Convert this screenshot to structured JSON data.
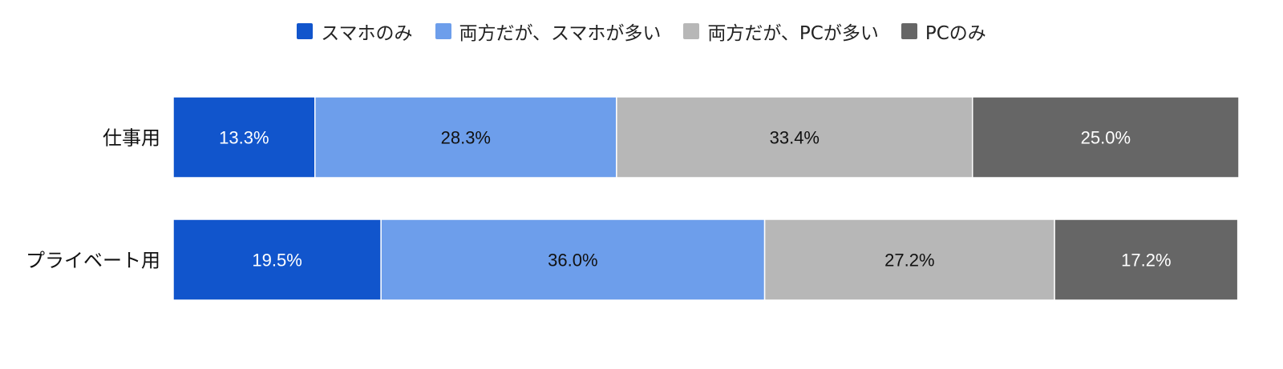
{
  "chart_data": {
    "type": "bar",
    "orientation": "horizontal",
    "stacked": true,
    "categories": [
      "仕事用",
      "プライベート用"
    ],
    "series": [
      {
        "name": "スマホのみ",
        "color": "#1155cc",
        "values": [
          13.3,
          19.5
        ],
        "labels": [
          "13.3%",
          "19.5%"
        ],
        "label_color": "#ffffff"
      },
      {
        "name": "両方だが、スマホが多い",
        "color": "#6d9eeb",
        "values": [
          28.3,
          36.0
        ],
        "labels": [
          "28.3%",
          "36.0%"
        ],
        "label_color": "#111111"
      },
      {
        "name": "両方だが、PCが多い",
        "color": "#b7b7b7",
        "values": [
          33.4,
          27.2
        ],
        "labels": [
          "33.4%",
          "27.2%"
        ],
        "label_color": "#111111"
      },
      {
        "name": "PCのみ",
        "color": "#666666",
        "values": [
          25.0,
          17.2
        ],
        "labels": [
          "25.0%",
          "17.2%"
        ],
        "label_color": "#ffffff"
      }
    ],
    "xlim": [
      0,
      100
    ],
    "grid": false,
    "legend_position": "top"
  }
}
